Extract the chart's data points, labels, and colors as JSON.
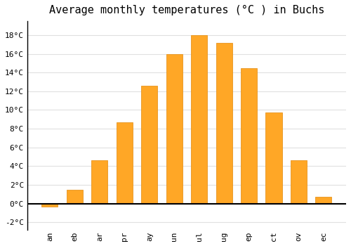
{
  "title": "Average monthly temperatures (°C ) in Buchs",
  "months": [
    "an",
    "eb",
    "ar",
    "pr",
    "ay",
    "un",
    "ul",
    "ug",
    "ep",
    "ct",
    "ov",
    "ec"
  ],
  "values": [
    -0.3,
    1.5,
    4.6,
    8.7,
    12.6,
    16.0,
    18.0,
    17.2,
    14.5,
    9.7,
    4.6,
    0.7
  ],
  "bar_color": "#FFA726",
  "bar_edge_color": "#E69520",
  "ylim": [
    -2.8,
    19.5
  ],
  "yticks": [
    -2,
    0,
    2,
    4,
    6,
    8,
    10,
    12,
    14,
    16,
    18
  ],
  "grid_color": "#e0e0e0",
  "background_color": "#ffffff",
  "title_fontsize": 11,
  "tick_fontsize": 8,
  "zero_line_color": "#000000",
  "bar_width": 0.65
}
